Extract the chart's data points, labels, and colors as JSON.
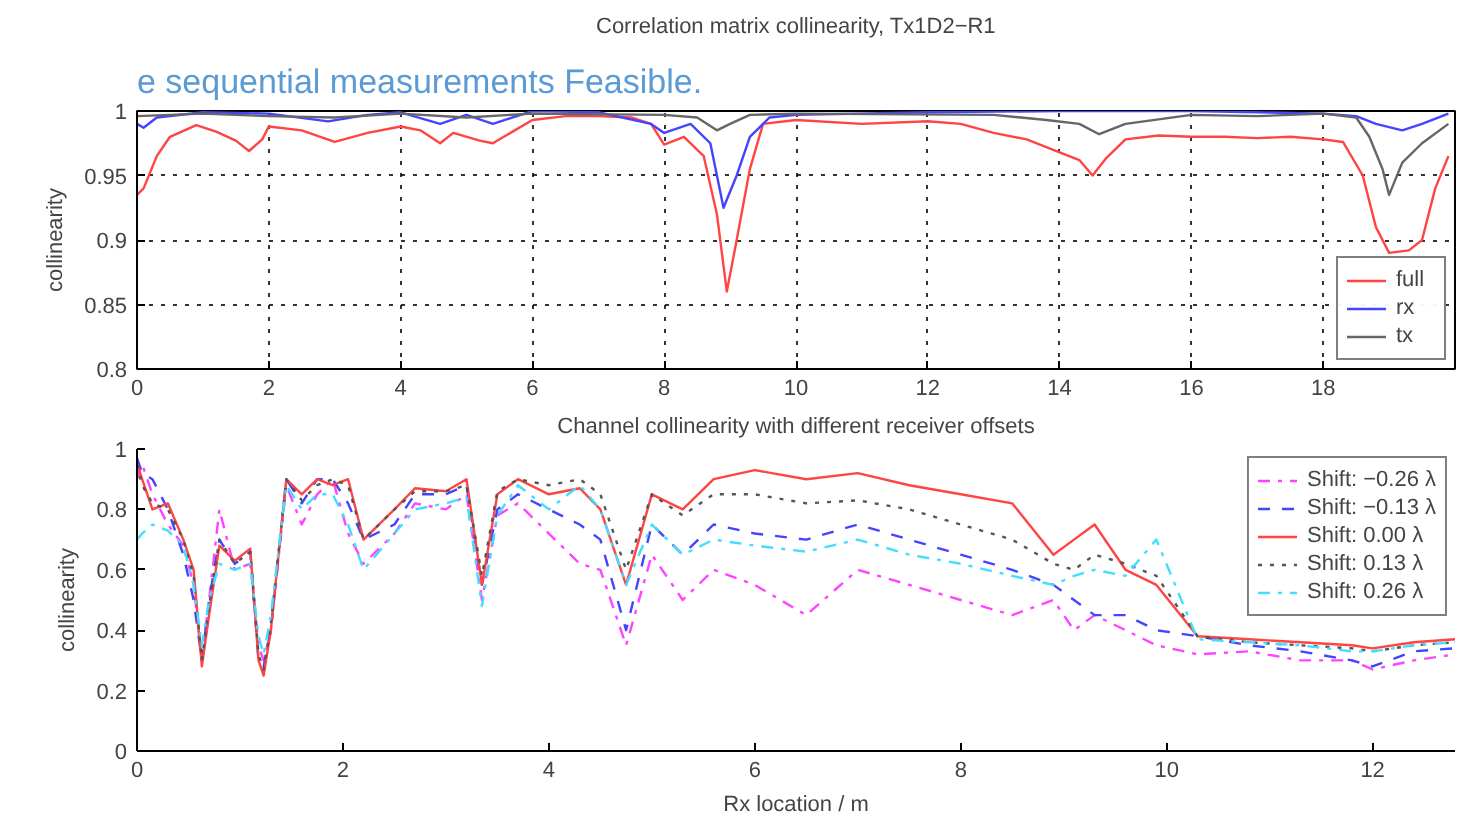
{
  "chart_data": [
    {
      "type": "line",
      "title": "Correlation matrix collinearity, Tx1D2−R1",
      "ylabel": "collinearity",
      "annotations": [
        "e sequential measurements Feasible."
      ],
      "xlim": [
        0,
        20
      ],
      "ylim": [
        0.8,
        1
      ],
      "xticks": [
        0,
        2,
        4,
        6,
        8,
        10,
        12,
        14,
        16,
        18
      ],
      "yticks": [
        0.8,
        0.85,
        0.9,
        0.95,
        1
      ],
      "grid": true,
      "legend": "bottom right",
      "line_style": "solid",
      "series": [
        {
          "name": "full",
          "color": "#ff4444",
          "x": [
            0,
            0.1,
            0.3,
            0.5,
            0.9,
            1.2,
            1.5,
            1.7,
            1.9,
            2.0,
            2.5,
            3.0,
            3.5,
            4.0,
            4.3,
            4.6,
            4.8,
            5.2,
            5.4,
            5.7,
            6.0,
            6.5,
            7.0,
            7.5,
            7.8,
            8.0,
            8.3,
            8.6,
            8.8,
            8.95,
            9.1,
            9.3,
            9.5,
            10,
            11,
            12,
            12.5,
            13,
            13.5,
            14,
            14.3,
            14.5,
            14.7,
            15,
            15.5,
            16,
            16.5,
            17,
            17.5,
            18,
            18.3,
            18.6,
            18.8,
            19.0,
            19.3,
            19.5,
            19.7,
            19.9
          ],
          "values": [
            0.935,
            0.94,
            0.965,
            0.98,
            0.989,
            0.984,
            0.977,
            0.969,
            0.978,
            0.988,
            0.985,
            0.976,
            0.983,
            0.988,
            0.985,
            0.975,
            0.983,
            0.977,
            0.975,
            0.984,
            0.993,
            0.996,
            0.996,
            0.995,
            0.99,
            0.974,
            0.98,
            0.965,
            0.92,
            0.86,
            0.9,
            0.955,
            0.99,
            0.993,
            0.99,
            0.992,
            0.99,
            0.983,
            0.978,
            0.968,
            0.962,
            0.95,
            0.963,
            0.978,
            0.981,
            0.98,
            0.98,
            0.979,
            0.98,
            0.978,
            0.976,
            0.95,
            0.91,
            0.89,
            0.892,
            0.9,
            0.94,
            0.965
          ]
        },
        {
          "name": "rx",
          "color": "#4444ff",
          "x": [
            0,
            0.1,
            0.3,
            1,
            2,
            2.9,
            3.5,
            4,
            4.6,
            5,
            5.4,
            6,
            7,
            7.8,
            8.0,
            8.4,
            8.7,
            8.9,
            9.1,
            9.3,
            9.6,
            10,
            12,
            14,
            16,
            18,
            18.5,
            18.8,
            19.2,
            19.5,
            19.9
          ],
          "values": [
            0.99,
            0.987,
            0.995,
            0.999,
            0.998,
            0.992,
            0.997,
            0.999,
            0.99,
            0.997,
            0.99,
            1.0,
            0.999,
            0.99,
            0.983,
            0.99,
            0.975,
            0.925,
            0.95,
            0.98,
            0.995,
            0.997,
            0.999,
            1.0,
            1.0,
            0.998,
            0.996,
            0.99,
            0.985,
            0.99,
            0.998
          ]
        },
        {
          "name": "tx",
          "color": "#666666",
          "x": [
            0,
            1,
            2,
            3,
            4,
            5,
            6,
            8,
            8.5,
            8.8,
            9.0,
            9.3,
            10,
            13,
            13.8,
            14.3,
            14.6,
            15,
            16,
            17,
            18,
            18.5,
            18.7,
            18.9,
            19.0,
            19.2,
            19.5,
            19.9
          ],
          "values": [
            0.996,
            0.998,
            0.996,
            0.995,
            0.998,
            0.995,
            0.998,
            0.997,
            0.995,
            0.985,
            0.99,
            0.997,
            0.998,
            0.997,
            0.993,
            0.99,
            0.982,
            0.99,
            0.997,
            0.996,
            0.998,
            0.995,
            0.98,
            0.955,
            0.935,
            0.96,
            0.975,
            0.99
          ]
        }
      ]
    },
    {
      "type": "line",
      "title": "Channel collinearity with different receiver offsets",
      "xlabel": "Rx location / m",
      "ylabel": "collinearity",
      "xlim": [
        0,
        12.8
      ],
      "ylim": [
        0,
        1
      ],
      "xticks": [
        0,
        2,
        4,
        6,
        8,
        10,
        12
      ],
      "yticks": [
        0,
        0.2,
        0.4,
        0.6,
        0.8,
        1
      ],
      "grid": false,
      "legend": "top right",
      "x": [
        0,
        0.05,
        0.15,
        0.3,
        0.45,
        0.55,
        0.63,
        0.7,
        0.8,
        0.95,
        1.1,
        1.18,
        1.23,
        1.3,
        1.45,
        1.6,
        1.75,
        1.9,
        2.05,
        2.2,
        2.5,
        2.7,
        3.0,
        3.2,
        3.35,
        3.5,
        3.7,
        4.0,
        4.3,
        4.5,
        4.75,
        5.0,
        5.3,
        5.6,
        6.0,
        6.5,
        7.0,
        7.5,
        8.0,
        8.5,
        8.9,
        9.1,
        9.3,
        9.6,
        9.9,
        10.3,
        10.8,
        11.3,
        11.8,
        12.0,
        12.4,
        12.8
      ],
      "series": [
        {
          "name": "Shift: −0.26 λ",
          "color": "#ff44ff",
          "line_style": "dashdot",
          "values": [
            0.9,
            0.95,
            0.85,
            0.75,
            0.68,
            0.55,
            0.3,
            0.5,
            0.8,
            0.6,
            0.62,
            0.35,
            0.3,
            0.4,
            0.88,
            0.75,
            0.85,
            0.9,
            0.72,
            0.62,
            0.72,
            0.82,
            0.8,
            0.85,
            0.5,
            0.78,
            0.82,
            0.72,
            0.62,
            0.6,
            0.35,
            0.65,
            0.5,
            0.6,
            0.55,
            0.45,
            0.6,
            0.55,
            0.5,
            0.45,
            0.5,
            0.4,
            0.45,
            0.4,
            0.35,
            0.32,
            0.33,
            0.3,
            0.3,
            0.27,
            0.3,
            0.32
          ]
        },
        {
          "name": "Shift: −0.13 λ",
          "color": "#4444ff",
          "line_style": "dashed",
          "values": [
            0.97,
            0.92,
            0.9,
            0.8,
            0.65,
            0.5,
            0.3,
            0.5,
            0.7,
            0.62,
            0.66,
            0.3,
            0.28,
            0.4,
            0.9,
            0.82,
            0.9,
            0.9,
            0.82,
            0.7,
            0.75,
            0.85,
            0.85,
            0.88,
            0.55,
            0.8,
            0.85,
            0.8,
            0.75,
            0.7,
            0.4,
            0.75,
            0.65,
            0.75,
            0.72,
            0.7,
            0.75,
            0.7,
            0.65,
            0.6,
            0.55,
            0.5,
            0.45,
            0.45,
            0.4,
            0.38,
            0.35,
            0.33,
            0.3,
            0.28,
            0.33,
            0.34
          ]
        },
        {
          "name": "Shift: 0.00 λ",
          "color": "#ff4444",
          "line_style": "solid",
          "values": [
            0.95,
            0.9,
            0.8,
            0.82,
            0.7,
            0.6,
            0.28,
            0.45,
            0.68,
            0.63,
            0.67,
            0.3,
            0.25,
            0.4,
            0.9,
            0.85,
            0.9,
            0.88,
            0.9,
            0.7,
            0.8,
            0.87,
            0.86,
            0.9,
            0.55,
            0.85,
            0.9,
            0.85,
            0.87,
            0.8,
            0.55,
            0.85,
            0.8,
            0.9,
            0.93,
            0.9,
            0.92,
            0.88,
            0.85,
            0.82,
            0.65,
            0.7,
            0.75,
            0.6,
            0.55,
            0.38,
            0.37,
            0.36,
            0.35,
            0.34,
            0.36,
            0.37
          ]
        },
        {
          "name": "Shift: 0.13 λ",
          "color": "#555555",
          "line_style": "dotted",
          "values": [
            0.95,
            0.88,
            0.82,
            0.8,
            0.7,
            0.58,
            0.3,
            0.48,
            0.7,
            0.62,
            0.66,
            0.32,
            0.27,
            0.42,
            0.9,
            0.83,
            0.88,
            0.9,
            0.88,
            0.7,
            0.8,
            0.86,
            0.86,
            0.88,
            0.58,
            0.86,
            0.9,
            0.88,
            0.9,
            0.85,
            0.6,
            0.85,
            0.78,
            0.85,
            0.85,
            0.82,
            0.83,
            0.8,
            0.75,
            0.7,
            0.62,
            0.6,
            0.65,
            0.62,
            0.58,
            0.38,
            0.36,
            0.35,
            0.34,
            0.33,
            0.35,
            0.36
          ]
        },
        {
          "name": "Shift: 0.26 λ",
          "color": "#44ddff",
          "line_style": "dashdot",
          "values": [
            0.7,
            0.72,
            0.75,
            0.73,
            0.68,
            0.55,
            0.35,
            0.5,
            0.62,
            0.6,
            0.62,
            0.38,
            0.32,
            0.45,
            0.88,
            0.8,
            0.85,
            0.85,
            0.75,
            0.6,
            0.72,
            0.8,
            0.82,
            0.84,
            0.48,
            0.78,
            0.88,
            0.8,
            0.88,
            0.8,
            0.55,
            0.75,
            0.65,
            0.7,
            0.68,
            0.66,
            0.7,
            0.65,
            0.62,
            0.58,
            0.55,
            0.58,
            0.6,
            0.58,
            0.7,
            0.37,
            0.36,
            0.35,
            0.33,
            0.33,
            0.35,
            0.36
          ]
        }
      ]
    }
  ]
}
